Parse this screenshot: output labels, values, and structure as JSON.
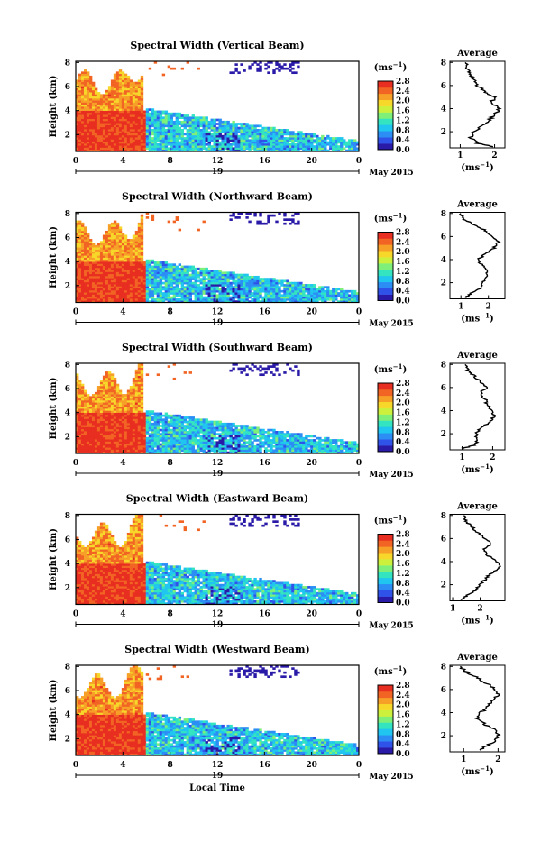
{
  "xaxis_label": "Local Time",
  "month_label": "May 2015",
  "day_label": "19",
  "y_label": "Height (km)",
  "unit_label": "(ms",
  "unit_sup": "−1",
  "avg_title": "Average",
  "colorbar": {
    "ticks": [
      "2.8",
      "2.4",
      "2.0",
      "1.6",
      "1.2",
      "0.8",
      "0.4",
      "0.0"
    ],
    "range": [
      0.0,
      2.8
    ],
    "colors": [
      "#2a1aa8",
      "#2f52e8",
      "#2c8ef5",
      "#20c5f0",
      "#34e4c0",
      "#7ef07a",
      "#cdf03c",
      "#f7d82a",
      "#f7a028",
      "#f26424",
      "#e82e20"
    ]
  },
  "chart_data": [
    {
      "type": "heatmap",
      "title": "Spectral Width (Vertical Beam)",
      "xlabel": "",
      "ylabel": "Height (km)",
      "x_ticks": [
        "0",
        "4",
        "8",
        "12",
        "16",
        "20",
        "0"
      ],
      "xlim": [
        0,
        24
      ],
      "y_ticks": [
        "2",
        "4",
        "6",
        "8"
      ],
      "ylim": [
        0.6,
        8.1
      ],
      "average_profile": {
        "title": "Average",
        "xlabel": "(ms−1)",
        "x_ticks": [
          "1",
          "2"
        ],
        "xlim": [
          0.7,
          2.3
        ],
        "y_ticks": [
          "2",
          "4",
          "6",
          "8"
        ],
        "height": [
          0.7,
          1.0,
          1.5,
          2.0,
          2.5,
          3.0,
          3.5,
          4.0,
          4.5,
          5.0,
          5.5,
          6.0,
          6.5,
          7.0,
          7.5,
          8.0
        ],
        "value": [
          2.0,
          1.5,
          1.3,
          1.4,
          1.6,
          1.85,
          2.0,
          2.15,
          1.9,
          2.0,
          1.7,
          1.5,
          1.4,
          1.25,
          1.2,
          1.15
        ]
      }
    },
    {
      "type": "heatmap",
      "title": "Spectral Width (Northward Beam)",
      "xlabel": "",
      "ylabel": "Height (km)",
      "x_ticks": [
        "0",
        "4",
        "8",
        "12",
        "16",
        "20",
        "0"
      ],
      "xlim": [
        0,
        24
      ],
      "y_ticks": [
        "2",
        "4",
        "6",
        "8"
      ],
      "ylim": [
        0.6,
        8.1
      ],
      "average_profile": {
        "title": "Average",
        "xlabel": "(ms−1)",
        "x_ticks": [
          "1",
          "2"
        ],
        "xlim": [
          0.6,
          2.6
        ],
        "y_ticks": [
          "2",
          "4",
          "6",
          "8"
        ],
        "height": [
          0.7,
          1.0,
          1.5,
          2.0,
          2.5,
          3.0,
          3.5,
          4.0,
          4.5,
          5.0,
          5.5,
          6.0,
          6.5,
          7.0,
          7.5,
          8.0
        ],
        "value": [
          1.2,
          1.3,
          1.7,
          1.8,
          1.9,
          2.0,
          1.8,
          1.6,
          1.9,
          2.2,
          2.35,
          2.1,
          1.9,
          1.5,
          1.1,
          1.0
        ]
      }
    },
    {
      "type": "heatmap",
      "title": "Spectral Width (Southward Beam)",
      "xlabel": "",
      "ylabel": "Height (km)",
      "x_ticks": [
        "0",
        "4",
        "8",
        "12",
        "16",
        "20",
        "0"
      ],
      "xlim": [
        0,
        24
      ],
      "y_ticks": [
        "2",
        "4",
        "6",
        "8"
      ],
      "ylim": [
        0.6,
        8.1
      ],
      "average_profile": {
        "title": "Average",
        "xlabel": "(ms−1)",
        "x_ticks": [
          "1",
          "2"
        ],
        "xlim": [
          0.6,
          2.4
        ],
        "y_ticks": [
          "2",
          "4",
          "6",
          "8"
        ],
        "height": [
          0.7,
          1.0,
          1.5,
          2.0,
          2.5,
          3.0,
          3.5,
          4.0,
          4.5,
          5.0,
          5.5,
          6.0,
          6.5,
          7.0,
          7.5,
          8.0
        ],
        "value": [
          1.0,
          1.4,
          1.5,
          1.45,
          1.6,
          1.9,
          2.05,
          2.0,
          1.8,
          1.75,
          1.6,
          1.8,
          1.6,
          1.4,
          1.2,
          1.1
        ]
      }
    },
    {
      "type": "heatmap",
      "title": "Spectral Width (Eastward Beam)",
      "xlabel": "",
      "ylabel": "Height (km)",
      "x_ticks": [
        "0",
        "4",
        "8",
        "12",
        "16",
        "20",
        "0"
      ],
      "xlim": [
        0,
        24
      ],
      "y_ticks": [
        "2",
        "4",
        "6",
        "8"
      ],
      "ylim": [
        0.6,
        8.1
      ],
      "average_profile": {
        "title": "Average",
        "xlabel": "(ms−1)",
        "x_ticks": [
          "1",
          "2"
        ],
        "xlim": [
          0.9,
          2.9
        ],
        "y_ticks": [
          "2",
          "4",
          "6",
          "8"
        ],
        "height": [
          0.7,
          1.0,
          1.5,
          2.0,
          2.5,
          3.0,
          3.5,
          4.0,
          4.5,
          5.0,
          5.5,
          6.0,
          6.5,
          7.0,
          7.5,
          8.0
        ],
        "value": [
          1.3,
          1.5,
          1.8,
          2.0,
          2.2,
          2.4,
          2.7,
          2.6,
          2.3,
          2.1,
          2.4,
          2.2,
          1.9,
          1.7,
          1.5,
          1.4
        ]
      }
    },
    {
      "type": "heatmap",
      "title": "Spectral Width (Westward Beam)",
      "xlabel": "Local Time",
      "ylabel": "Height (km)",
      "x_ticks": [
        "0",
        "4",
        "8",
        "12",
        "16",
        "20",
        "0"
      ],
      "xlim": [
        0,
        24
      ],
      "y_ticks": [
        "2",
        "4",
        "6",
        "8"
      ],
      "ylim": [
        0.6,
        8.1
      ],
      "average_profile": {
        "title": "Average",
        "xlabel": "(ms−1)",
        "x_ticks": [
          "1",
          "2"
        ],
        "xlim": [
          0.6,
          2.2
        ],
        "y_ticks": [
          "2",
          "4",
          "6",
          "8"
        ],
        "height": [
          0.7,
          1.0,
          1.5,
          2.0,
          2.5,
          3.0,
          3.5,
          4.0,
          4.5,
          5.0,
          5.5,
          6.0,
          6.5,
          7.0,
          7.5,
          8.0
        ],
        "value": [
          1.5,
          1.6,
          1.9,
          2.0,
          1.9,
          1.6,
          1.4,
          1.5,
          1.7,
          1.8,
          2.0,
          1.9,
          1.7,
          1.4,
          1.1,
          0.9
        ]
      }
    }
  ]
}
